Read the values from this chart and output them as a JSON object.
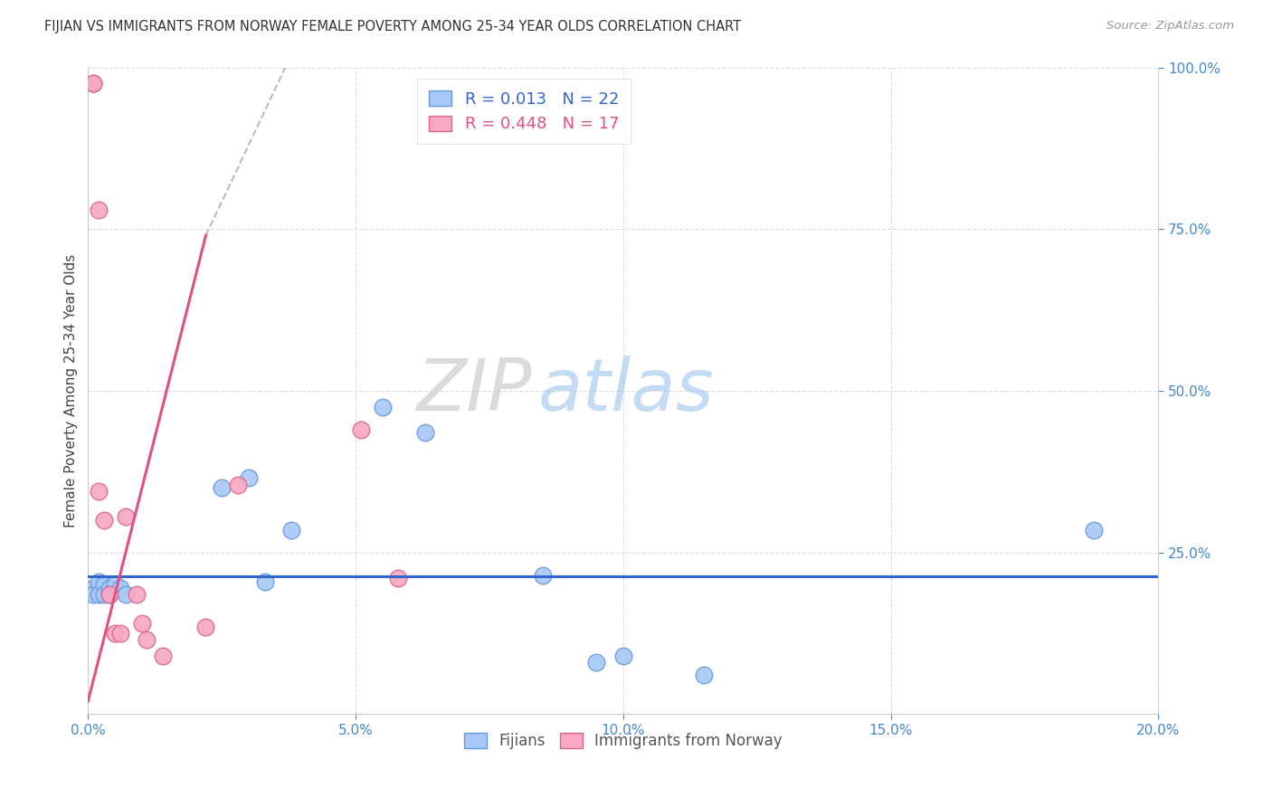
{
  "title": "FIJIAN VS IMMIGRANTS FROM NORWAY FEMALE POVERTY AMONG 25-34 YEAR OLDS CORRELATION CHART",
  "source": "Source: ZipAtlas.com",
  "ylabel": "Female Poverty Among 25-34 Year Olds",
  "xlim": [
    0.0,
    0.2
  ],
  "ylim": [
    0.0,
    1.0
  ],
  "xticks": [
    0.0,
    0.05,
    0.1,
    0.15,
    0.2
  ],
  "xticklabels": [
    "0.0%",
    "5.0%",
    "10.0%",
    "15.0%",
    "20.0%"
  ],
  "yticks_right": [
    0.25,
    0.5,
    0.75,
    1.0
  ],
  "yticklabels_right": [
    "25.0%",
    "50.0%",
    "75.0%",
    "100.0%"
  ],
  "fijian_color": "#a8c8f8",
  "norway_color": "#f8a8c0",
  "fijian_edge": "#6699dd",
  "norway_edge": "#dd6688",
  "trend_blue": "#3366cc",
  "trend_pink": "#e05080",
  "trend_gray": "#bbbbbb",
  "R_fijian": 0.013,
  "N_fijian": 22,
  "R_norway": 0.448,
  "N_norway": 17,
  "fijian_label": "Fijians",
  "norway_label": "Immigrants from Norway",
  "watermark_zip": "ZIP",
  "watermark_atlas": "atlas",
  "fijian_x": [
    0.001,
    0.001,
    0.002,
    0.002,
    0.003,
    0.003,
    0.004,
    0.004,
    0.005,
    0.006,
    0.007,
    0.025,
    0.03,
    0.033,
    0.038,
    0.055,
    0.063,
    0.085,
    0.095,
    0.1,
    0.115,
    0.188
  ],
  "fijian_y": [
    0.195,
    0.185,
    0.205,
    0.185,
    0.2,
    0.185,
    0.195,
    0.185,
    0.2,
    0.195,
    0.185,
    0.35,
    0.365,
    0.205,
    0.285,
    0.475,
    0.435,
    0.215,
    0.08,
    0.09,
    0.06,
    0.285
  ],
  "norway_x": [
    0.001,
    0.001,
    0.002,
    0.002,
    0.003,
    0.004,
    0.005,
    0.006,
    0.007,
    0.009,
    0.01,
    0.011,
    0.014,
    0.022,
    0.028,
    0.051,
    0.058
  ],
  "norway_y": [
    0.975,
    0.975,
    0.78,
    0.345,
    0.3,
    0.185,
    0.125,
    0.125,
    0.305,
    0.185,
    0.14,
    0.115,
    0.09,
    0.135,
    0.355,
    0.44,
    0.21
  ],
  "blue_line_y": 0.213,
  "pink_line_x0": 0.0,
  "pink_line_y0": 0.02,
  "pink_line_x1": 0.022,
  "pink_line_y1": 0.74,
  "gray_line_x0": 0.022,
  "gray_line_y0": 0.74,
  "gray_line_x1": 0.038,
  "gray_line_y1": 1.02
}
